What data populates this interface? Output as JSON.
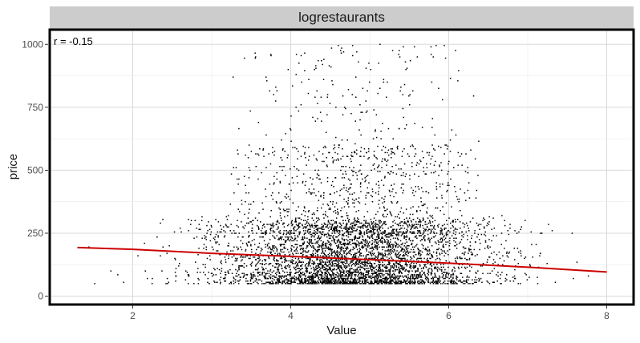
{
  "chart_data": {
    "type": "scatter",
    "facet_title": "logrestaurants",
    "xlabel": "Value",
    "ylabel": "price",
    "annotation": "r = -0.15",
    "xlim": [
      0.97,
      8.33
    ],
    "ylim": [
      -30,
      1055
    ],
    "x_ticks": [
      2,
      4,
      6,
      8
    ],
    "y_ticks": [
      0,
      250,
      500,
      750,
      1000
    ],
    "x_tick_labels": [
      "2",
      "4",
      "6",
      "8"
    ],
    "y_tick_labels": [
      "0",
      "250",
      "500",
      "750",
      "1000"
    ],
    "grid": true,
    "point_color": "#000000",
    "trend_color": "#cc0000",
    "panel_border_color": "#000000",
    "strip_color": "#cccccc",
    "scatter_summary": {
      "x_center": 4.8,
      "x_spread": 0.85,
      "x_range": [
        1.3,
        8.0
      ],
      "bulk_y_range": [
        50,
        300
      ],
      "max_y": 1000
    },
    "trend_line": {
      "x": [
        1.3,
        2.0,
        3.0,
        4.0,
        5.0,
        6.0,
        7.0,
        8.0
      ],
      "y": [
        193,
        186,
        170,
        158,
        145,
        131,
        115,
        96
      ]
    }
  }
}
